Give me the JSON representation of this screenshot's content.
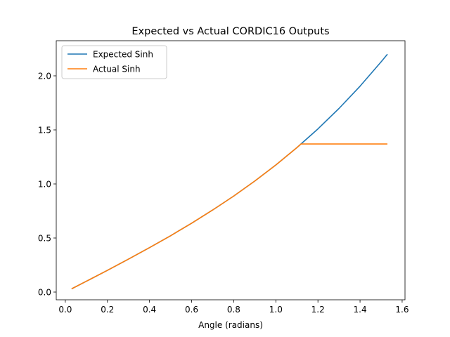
{
  "chart_data": {
    "type": "line",
    "title": "Expected vs Actual CORDIC16 Outputs",
    "xlabel": "Angle (radians)",
    "ylabel": "",
    "xlim": [
      0.0,
      1.6
    ],
    "ylim": [
      0.0,
      2.0
    ],
    "xticks": [
      "0.0",
      "0.2",
      "0.4",
      "0.6",
      "0.8",
      "1.0",
      "1.2",
      "1.4",
      "1.6"
    ],
    "yticks": [
      "0.0",
      "0.5",
      "1.0",
      "1.5",
      "2.0"
    ],
    "grid": false,
    "legend": "top-left",
    "series": [
      {
        "name": "Expected Sinh",
        "color": "#1f77b4",
        "x": [
          0.03,
          0.1,
          0.2,
          0.3,
          0.4,
          0.5,
          0.6,
          0.7,
          0.8,
          0.9,
          1.0,
          1.1,
          1.2,
          1.3,
          1.4,
          1.5,
          1.53
        ],
        "y": [
          0.03,
          0.1,
          0.201,
          0.305,
          0.411,
          0.521,
          0.637,
          0.759,
          0.888,
          1.027,
          1.175,
          1.336,
          1.509,
          1.698,
          1.904,
          2.129,
          2.2
        ]
      },
      {
        "name": "Actual Sinh",
        "color": "#ff7f0e",
        "x": [
          0.03,
          0.1,
          0.2,
          0.3,
          0.4,
          0.5,
          0.6,
          0.7,
          0.8,
          0.9,
          1.0,
          1.1,
          1.12,
          1.2,
          1.3,
          1.4,
          1.5,
          1.53
        ],
        "y": [
          0.03,
          0.1,
          0.201,
          0.305,
          0.411,
          0.521,
          0.637,
          0.759,
          0.888,
          1.027,
          1.175,
          1.336,
          1.37,
          1.37,
          1.37,
          1.37,
          1.37,
          1.37
        ]
      }
    ]
  }
}
